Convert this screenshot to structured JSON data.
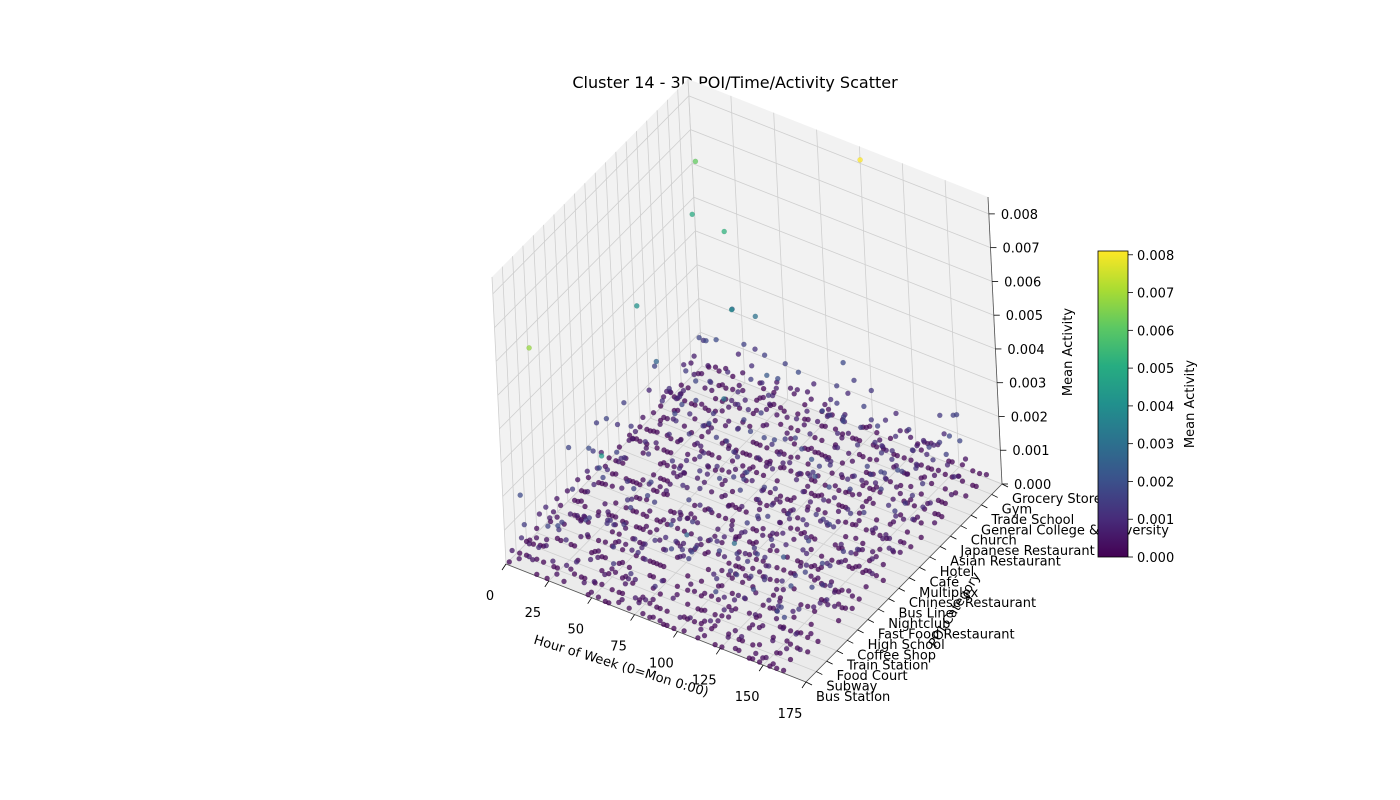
{
  "chart_data": {
    "type": "scatter",
    "projection": "3d",
    "title": "Cluster 14 - 3D POI/Time/Activity Scatter",
    "xlabel": "Hour of Week (0=Mon 0:00)",
    "ylabel": "POI Category",
    "zlabel": "Mean Activity",
    "x_ticks": [
      0,
      25,
      50,
      75,
      100,
      125,
      150,
      175
    ],
    "xlim": [
      0,
      175
    ],
    "z_ticks": [
      "0.000",
      "0.001",
      "0.002",
      "0.003",
      "0.004",
      "0.005",
      "0.006",
      "0.007",
      "0.008"
    ],
    "zlim": [
      0,
      0.0085
    ],
    "categories": [
      "Bus Station",
      "Subway",
      "Food Court",
      "Train Station",
      "Coffee Shop",
      "High School",
      "Fast Food Restaurant",
      "Nightclub",
      "Bus Line",
      "Chinese Restaurant",
      "Multiplex",
      "Café",
      "Hotel",
      "Asian Restaurant",
      "Japanese Restaurant",
      "Church",
      "General College & University",
      "Trade School",
      "Gym",
      "Grocery Store"
    ],
    "colormap": "viridis",
    "grid": true,
    "colorbar": {
      "label": "Mean Activity",
      "ticks": [
        "0.000",
        "0.001",
        "0.002",
        "0.003",
        "0.004",
        "0.005",
        "0.006",
        "0.007",
        "0.008"
      ],
      "range": [
        0,
        0.0081
      ]
    },
    "notable_points": [
      {
        "x": 2,
        "category": "Grocery Store",
        "z": 0.0061
      },
      {
        "x": 5,
        "category": "Gym",
        "z": 0.0049
      },
      {
        "x": 20,
        "category": "Bus Station",
        "z": 0.0068
      },
      {
        "x": 30,
        "category": "Trade School",
        "z": 0.0052
      },
      {
        "x": 60,
        "category": "Bus Station",
        "z": 0.0044
      },
      {
        "x": 100,
        "category": "Grocery Store",
        "z": 0.0081
      },
      {
        "x": 8,
        "category": "Hotel",
        "z": 0.0041
      },
      {
        "x": 45,
        "category": "Church",
        "z": 0.0038
      },
      {
        "x": 70,
        "category": "Multiplex",
        "z": 0.0032
      },
      {
        "x": 130,
        "category": "Subway",
        "z": 0.0029
      }
    ]
  }
}
